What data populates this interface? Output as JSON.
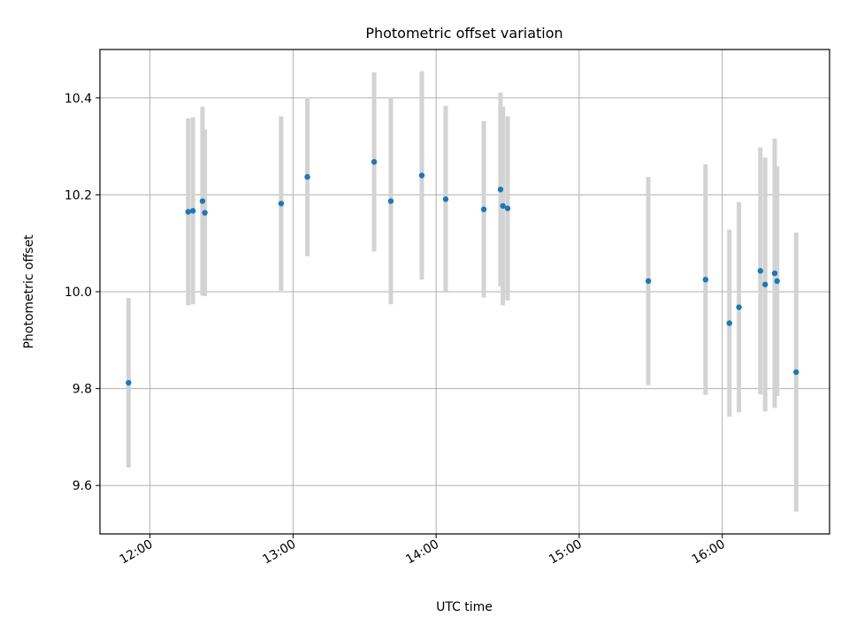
{
  "chart_data": {
    "type": "scatter",
    "title": "Photometric offset variation",
    "xlabel": "UTC time",
    "ylabel": "Photometric offset",
    "x_tick_labels": [
      "12:00",
      "13:00",
      "14:00",
      "15:00",
      "16:00"
    ],
    "x_ticks": [
      "12:00",
      "13:00",
      "14:00",
      "15:00",
      "16:00"
    ],
    "y_tick_labels": [
      "9.6",
      "9.8",
      "10.0",
      "10.2",
      "10.4"
    ],
    "y_ticks": [
      9.6,
      9.8,
      10.0,
      10.2,
      10.4
    ],
    "xlim": [
      "11:39",
      "16:45"
    ],
    "ylim": [
      9.5,
      10.5
    ],
    "grid": true,
    "legend": "none",
    "colors": {
      "point": "#1f77b4",
      "errorbar": "#d3d3d3",
      "grid": "#b0b0b0",
      "axes": "#000000",
      "background": "#ffffff"
    },
    "series": [
      {
        "x": [
          "11:51",
          "12:16",
          "12:18",
          "12:22",
          "12:23",
          "12:55",
          "13:06",
          "13:34",
          "13:41",
          "13:54",
          "14:04",
          "14:20",
          "14:27",
          "14:28",
          "14:30",
          "15:29",
          "15:53",
          "16:03",
          "16:07",
          "16:16",
          "16:18",
          "16:22",
          "16:23",
          "16:31"
        ],
        "y": [
          9.812,
          10.165,
          10.167,
          10.187,
          10.163,
          10.182,
          10.237,
          10.268,
          10.187,
          10.24,
          10.191,
          10.17,
          10.211,
          10.177,
          10.172,
          10.022,
          10.025,
          9.935,
          9.968,
          10.043,
          10.015,
          10.038,
          10.022,
          9.834
        ],
        "yerr": [
          0.175,
          0.193,
          0.193,
          0.195,
          0.172,
          0.18,
          0.164,
          0.185,
          0.213,
          0.215,
          0.193,
          0.182,
          0.2,
          0.205,
          0.19,
          0.215,
          0.238,
          0.193,
          0.217,
          0.255,
          0.262,
          0.278,
          0.237,
          0.288
        ]
      }
    ]
  }
}
